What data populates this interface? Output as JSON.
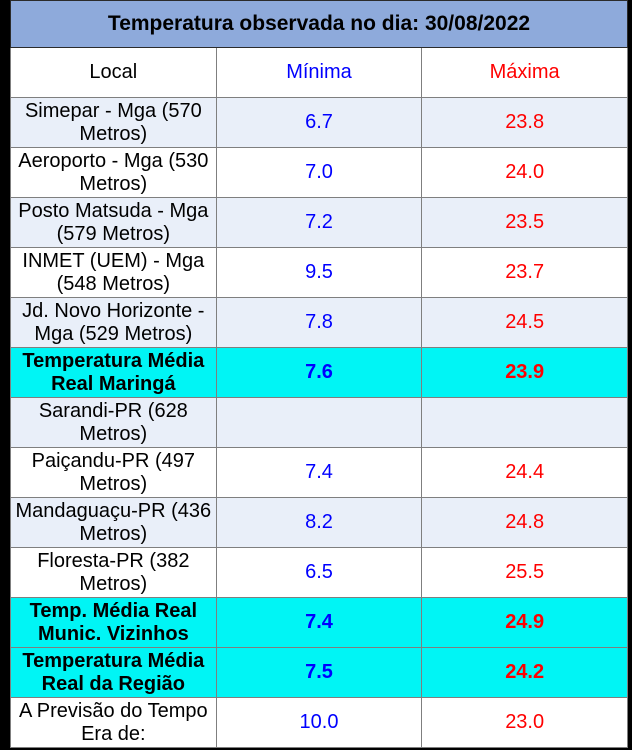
{
  "title": "Temperatura observada no dia: 30/08/2022",
  "headers": {
    "local": "Local",
    "minima": "Mínima",
    "maxima": "Máxima"
  },
  "rows": [
    {
      "local": "Simepar - Mga  (570 Metros)",
      "min": "6.7",
      "max": "23.8"
    },
    {
      "local": "Aeroporto - Mga (530 Metros)",
      "min": "7.0",
      "max": "24.0"
    },
    {
      "local": "Posto Matsuda - Mga (579 Metros)",
      "min": "7.2",
      "max": "23.5"
    },
    {
      "local": "INMET (UEM) - Mga  (548 Metros)",
      "min": "9.5",
      "max": "23.7"
    },
    {
      "local": "Jd. Novo Horizonte - Mga (529 Metros)",
      "min": "7.8",
      "max": "24.5"
    },
    {
      "local": "Temperatura Média Real Maringá",
      "min": "7.6",
      "max": "23.9"
    },
    {
      "local": "Sarandi-PR  (628 Metros)",
      "min": "",
      "max": ""
    },
    {
      "local": "Paiçandu-PR (497 Metros)",
      "min": "7.4",
      "max": "24.4"
    },
    {
      "local": "Mandaguaçu-PR (436 Metros)",
      "min": "8.2",
      "max": "24.8"
    },
    {
      "local": "Floresta-PR (382 Metros)",
      "min": "6.5",
      "max": "25.5"
    },
    {
      "local": "Temp. Média Real Munic. Vizinhos",
      "min": "7.4",
      "max": "24.9"
    },
    {
      "local": "Temperatura Média Real da Região",
      "min": "7.5",
      "max": "24.2"
    },
    {
      "local": "A Previsão do Tempo Era de:",
      "min": "10.0",
      "max": "23.0"
    }
  ],
  "colors": {
    "title_bg": "#8eaadb",
    "avg_bg": "#00f5f5",
    "alt_bg": "#e9eff9",
    "min": "#0000ff",
    "max": "#ff0000"
  }
}
